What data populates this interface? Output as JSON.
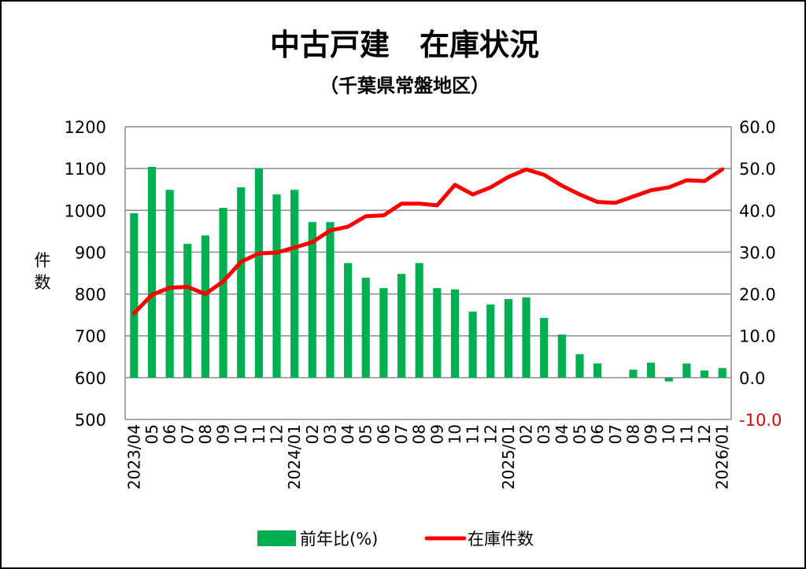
{
  "chart_data": {
    "type": "bar+line",
    "title": "中古戸建　在庫状況",
    "subtitle": "（千葉県常盤地区）",
    "ylabel_left": "件数",
    "categories": [
      "2023/04",
      "05",
      "06",
      "07",
      "08",
      "09",
      "10",
      "11",
      "12",
      "2024/01",
      "02",
      "03",
      "04",
      "05",
      "06",
      "07",
      "08",
      "09",
      "10",
      "11",
      "12",
      "2025/01",
      "02",
      "03",
      "04",
      "05",
      "06",
      "07",
      "08",
      "09",
      "10",
      "11",
      "12",
      "2026/01"
    ],
    "left_axis": {
      "min": 500,
      "max": 1200,
      "step": 100,
      "ticks": [
        "500",
        "600",
        "700",
        "800",
        "900",
        "1000",
        "1100",
        "1200"
      ]
    },
    "right_axis": {
      "min": -10,
      "max": 60,
      "step": 10,
      "ticks": [
        "-10.0",
        "0.0",
        "10.0",
        "20.0",
        "30.0",
        "40.0",
        "50.0",
        "60.0"
      ],
      "negative_color": "#e00000"
    },
    "grid": true,
    "legend_position": "bottom",
    "series": [
      {
        "name": "前年比(%)",
        "type": "bar",
        "axis": "right",
        "color": "#00b050",
        "values": [
          39.3,
          50.4,
          44.9,
          32.0,
          34.0,
          40.6,
          45.5,
          50.0,
          43.8,
          44.9,
          37.2,
          37.2,
          27.4,
          23.9,
          21.4,
          24.8,
          27.4,
          21.4,
          21.1,
          15.8,
          17.5,
          18.8,
          19.2,
          14.3,
          10.3,
          5.6,
          3.4,
          0.0,
          1.9,
          3.6,
          -0.9,
          3.4,
          1.7,
          2.3
        ]
      },
      {
        "name": "在庫件数",
        "type": "line",
        "axis": "left",
        "color": "#ff0000",
        "values": [
          754,
          798,
          815,
          817,
          800,
          830,
          877,
          897,
          899,
          911,
          924,
          952,
          961,
          986,
          988,
          1016,
          1016,
          1012,
          1061,
          1038,
          1055,
          1080,
          1098,
          1085,
          1059,
          1038,
          1020,
          1018,
          1033,
          1048,
          1055,
          1072,
          1070,
          1098
        ]
      }
    ]
  }
}
